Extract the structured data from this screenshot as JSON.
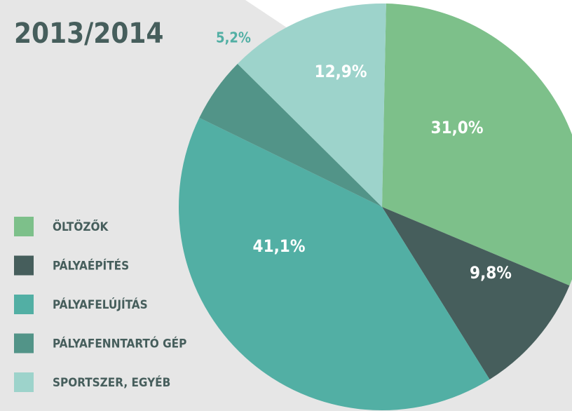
{
  "chart_data": {
    "type": "pie",
    "title": "2013/2014",
    "categories": [
      "ÖLTÖZŐK",
      "PÁLYAÉPÍTÉS",
      "PÁLYAFELÚJÍTÁS",
      "PÁLYAFENNTARTÓ GÉP",
      "SPORTSZER, EGYÉB"
    ],
    "values": [
      31.0,
      9.8,
      41.1,
      5.2,
      12.9
    ],
    "value_labels": [
      "31,0%",
      "9,8%",
      "41,1%",
      "5,2%",
      "12,9%"
    ],
    "colors": [
      "#7dc08a",
      "#465e5c",
      "#52afa4",
      "#529488",
      "#9dd3cb"
    ],
    "legend": "left"
  }
}
